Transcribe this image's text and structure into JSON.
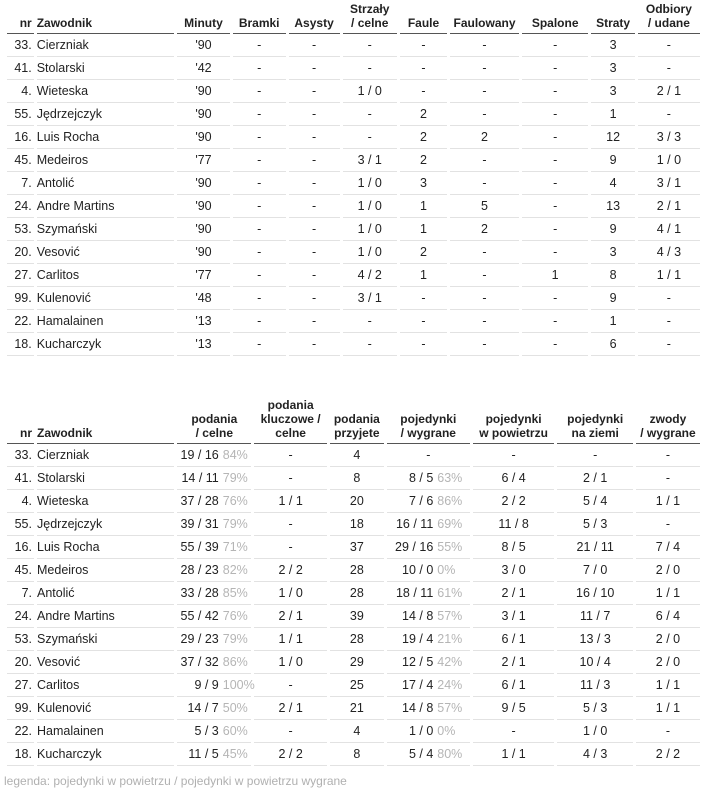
{
  "table1": {
    "headers": [
      [
        "nr"
      ],
      [
        "Zawodnik"
      ],
      [
        "Minuty"
      ],
      [
        "Bramki"
      ],
      [
        "Asysty"
      ],
      [
        "Strzały",
        "/ celne"
      ],
      [
        "Faule"
      ],
      [
        "Faulowany"
      ],
      [
        "Spalone"
      ],
      [
        "Straty"
      ],
      [
        "Odbiory",
        "/ udane"
      ]
    ],
    "rows": [
      [
        "33.",
        "Cierzniak",
        "'90",
        "-",
        "-",
        "-",
        "-",
        "-",
        "-",
        "3",
        "-"
      ],
      [
        "41.",
        "Stolarski",
        "'42",
        "-",
        "-",
        "-",
        "-",
        "-",
        "-",
        "3",
        "-"
      ],
      [
        "4.",
        "Wieteska",
        "'90",
        "-",
        "-",
        "1 / 0",
        "-",
        "-",
        "-",
        "3",
        "2 / 1"
      ],
      [
        "55.",
        "Jędrzejczyk",
        "'90",
        "-",
        "-",
        "-",
        "2",
        "-",
        "-",
        "1",
        "-"
      ],
      [
        "16.",
        "Luis Rocha",
        "'90",
        "-",
        "-",
        "-",
        "2",
        "2",
        "-",
        "12",
        "3 / 3"
      ],
      [
        "45.",
        "Medeiros",
        "'77",
        "-",
        "-",
        "3 / 1",
        "2",
        "-",
        "-",
        "9",
        "1 / 0"
      ],
      [
        "7.",
        "Antolić",
        "'90",
        "-",
        "-",
        "1 / 0",
        "3",
        "-",
        "-",
        "4",
        "3 / 1"
      ],
      [
        "24.",
        "Andre Martins",
        "'90",
        "-",
        "-",
        "1 / 0",
        "1",
        "5",
        "-",
        "13",
        "2 / 1"
      ],
      [
        "53.",
        "Szymański",
        "'90",
        "-",
        "-",
        "1 / 0",
        "1",
        "2",
        "-",
        "9",
        "4 / 1"
      ],
      [
        "20.",
        "Vesović",
        "'90",
        "-",
        "-",
        "1 / 0",
        "2",
        "-",
        "-",
        "3",
        "4 / 3"
      ],
      [
        "27.",
        "Carlitos",
        "'77",
        "-",
        "-",
        "4 / 2",
        "1",
        "-",
        "1",
        "8",
        "1 / 1"
      ],
      [
        "99.",
        "Kulenović",
        "'48",
        "-",
        "-",
        "3 / 1",
        "-",
        "-",
        "-",
        "9",
        "-"
      ],
      [
        "22.",
        "Hamalainen",
        "'13",
        "-",
        "-",
        "-",
        "-",
        "-",
        "-",
        "1",
        "-"
      ],
      [
        "18.",
        "Kucharczyk",
        "'13",
        "-",
        "-",
        "-",
        "-",
        "-",
        "-",
        "6",
        "-"
      ]
    ]
  },
  "table2": {
    "headers": [
      [
        "nr"
      ],
      [
        "Zawodnik"
      ],
      [
        "podania",
        "/ celne"
      ],
      [
        "podania",
        "kluczowe /",
        "celne"
      ],
      [
        "podania",
        "przyjete"
      ],
      [
        "pojedynki",
        "/ wygrane"
      ],
      [
        "pojedynki",
        "w powietrzu"
      ],
      [
        "pojedynki",
        "na ziemi"
      ],
      [
        "zwody",
        "/ wygrane"
      ]
    ],
    "rows": [
      [
        "33.",
        "Cierzniak",
        {
          "main": "19 / 16",
          "pct": "84%"
        },
        "-",
        "4",
        "-",
        "-",
        "-",
        "-"
      ],
      [
        "41.",
        "Stolarski",
        {
          "main": "14 / 11",
          "pct": "79%"
        },
        "-",
        "8",
        {
          "main": "8 / 5",
          "pct": "63%"
        },
        "6 / 4",
        "2 / 1",
        "-"
      ],
      [
        "4.",
        "Wieteska",
        {
          "main": "37 / 28",
          "pct": "76%"
        },
        "1 / 1",
        "20",
        {
          "main": "7 / 6",
          "pct": "86%"
        },
        "2 / 2",
        "5 / 4",
        "1 / 1"
      ],
      [
        "55.",
        "Jędrzejczyk",
        {
          "main": "39 / 31",
          "pct": "79%"
        },
        "-",
        "18",
        {
          "main": "16 / 11",
          "pct": "69%"
        },
        "11 / 8",
        "5 / 3",
        "-"
      ],
      [
        "16.",
        "Luis Rocha",
        {
          "main": "55 / 39",
          "pct": "71%"
        },
        "-",
        "37",
        {
          "main": "29 / 16",
          "pct": "55%"
        },
        "8 / 5",
        "21 / 11",
        "7 / 4"
      ],
      [
        "45.",
        "Medeiros",
        {
          "main": "28 / 23",
          "pct": "82%"
        },
        "2 / 2",
        "28",
        {
          "main": "10 / 0",
          "pct": "0%"
        },
        "3 / 0",
        "7 / 0",
        "2 / 0"
      ],
      [
        "7.",
        "Antolić",
        {
          "main": "33 / 28",
          "pct": "85%"
        },
        "1 / 0",
        "28",
        {
          "main": "18 / 11",
          "pct": "61%"
        },
        "2 / 1",
        "16 / 10",
        "1 / 1"
      ],
      [
        "24.",
        "Andre Martins",
        {
          "main": "55 / 42",
          "pct": "76%"
        },
        "2 / 1",
        "39",
        {
          "main": "14 / 8",
          "pct": "57%"
        },
        "3 / 1",
        "11 / 7",
        "6 / 4"
      ],
      [
        "53.",
        "Szymański",
        {
          "main": "29 / 23",
          "pct": "79%"
        },
        "1 / 1",
        "28",
        {
          "main": "19 / 4",
          "pct": "21%"
        },
        "6 / 1",
        "13 / 3",
        "2 / 0"
      ],
      [
        "20.",
        "Vesović",
        {
          "main": "37 / 32",
          "pct": "86%"
        },
        "1 / 0",
        "29",
        {
          "main": "12 / 5",
          "pct": "42%"
        },
        "2 / 1",
        "10 / 4",
        "2 / 0"
      ],
      [
        "27.",
        "Carlitos",
        {
          "main": "9 / 9",
          "pct": "100%"
        },
        "-",
        "25",
        {
          "main": "17 / 4",
          "pct": "24%"
        },
        "6 / 1",
        "11 / 3",
        "1 / 1"
      ],
      [
        "99.",
        "Kulenović",
        {
          "main": "14 / 7",
          "pct": "50%"
        },
        "2 / 1",
        "21",
        {
          "main": "14 / 8",
          "pct": "57%"
        },
        "9 / 5",
        "5 / 3",
        "1 / 1"
      ],
      [
        "22.",
        "Hamalainen",
        {
          "main": "5 / 3",
          "pct": "60%"
        },
        "-",
        "4",
        {
          "main": "1 / 0",
          "pct": "0%"
        },
        "-",
        "1 / 0",
        "-"
      ],
      [
        "18.",
        "Kucharczyk",
        {
          "main": "11 / 5",
          "pct": "45%"
        },
        "2 / 2",
        "8",
        {
          "main": "5 / 4",
          "pct": "80%"
        },
        "1 / 1",
        "4 / 3",
        "2 / 2"
      ]
    ]
  },
  "legend": "legenda: pojedynki w powietrzu / pojedynki w powietrzu wygrane"
}
